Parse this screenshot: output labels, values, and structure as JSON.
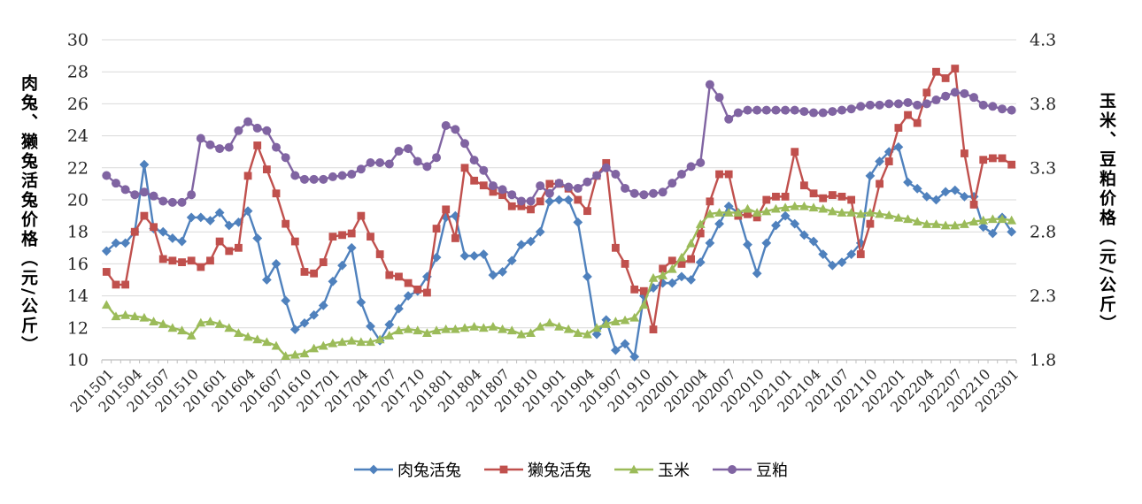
{
  "chart_data": {
    "type": "line",
    "title": "",
    "left_axis": {
      "title": "肉兔、獭兔活兔价格（元/公斤）",
      "min": 10,
      "max": 30,
      "step": 2,
      "ticks": [
        10,
        12,
        14,
        16,
        18,
        20,
        22,
        24,
        26,
        28,
        30
      ]
    },
    "right_axis": {
      "title": "玉米、豆粕价格（元/公斤）",
      "min": 1.8,
      "max": 4.3,
      "step": 0.5,
      "ticks": [
        "1.8",
        "2.3",
        "2.8",
        "3.3",
        "3.8",
        "4.3"
      ]
    },
    "grid": true,
    "legend_position": "bottom",
    "x_label_every": 3,
    "x": [
      "201501",
      "201502",
      "201503",
      "201504",
      "201505",
      "201506",
      "201507",
      "201508",
      "201509",
      "201510",
      "201511",
      "201512",
      "201601",
      "201602",
      "201603",
      "201604",
      "201605",
      "201606",
      "201607",
      "201608",
      "201609",
      "201610",
      "201611",
      "201612",
      "201701",
      "201702",
      "201703",
      "201704",
      "201705",
      "201706",
      "201707",
      "201708",
      "201709",
      "201710",
      "201711",
      "201712",
      "201801",
      "201802",
      "201803",
      "201804",
      "201805",
      "201806",
      "201807",
      "201808",
      "201809",
      "201810",
      "201811",
      "201812",
      "201901",
      "201902",
      "201903",
      "201904",
      "201905",
      "201906",
      "201907",
      "201908",
      "201909",
      "201910",
      "201911",
      "201912",
      "202001",
      "202002",
      "202003",
      "202004",
      "202005",
      "202006",
      "202007",
      "202008",
      "202009",
      "202010",
      "202011",
      "202012",
      "202101",
      "202102",
      "202103",
      "202104",
      "202105",
      "202106",
      "202107",
      "202108",
      "202109",
      "202110",
      "202111",
      "202112",
      "202201",
      "202202",
      "202203",
      "202204",
      "202205",
      "202206",
      "202207",
      "202208",
      "202209",
      "202210",
      "202211",
      "202212",
      "202301"
    ],
    "series": [
      {
        "id": "meat-rabbit",
        "name": "肉兔活兔",
        "axis": "left",
        "color": "#4F81BD",
        "marker": "diamond",
        "values": [
          16.8,
          17.3,
          17.3,
          18.0,
          22.2,
          18.2,
          18.0,
          17.6,
          17.4,
          18.9,
          18.9,
          18.7,
          19.2,
          18.4,
          18.6,
          19.3,
          17.6,
          15.0,
          16.0,
          13.7,
          11.9,
          12.3,
          12.8,
          13.4,
          14.9,
          15.9,
          17.0,
          13.6,
          12.1,
          11.2,
          12.2,
          13.2,
          14.0,
          14.3,
          15.2,
          16.4,
          18.9,
          19.0,
          16.5,
          16.5,
          16.6,
          15.3,
          15.5,
          16.2,
          17.2,
          17.4,
          18.0,
          19.9,
          20.0,
          20.0,
          18.6,
          15.2,
          11.6,
          12.5,
          10.6,
          11.0,
          10.2,
          14.0,
          14.5,
          14.8,
          14.8,
          15.2,
          15.0,
          16.1,
          17.3,
          18.5,
          19.6,
          19.2,
          17.2,
          15.4,
          17.3,
          18.4,
          19.0,
          18.5,
          17.8,
          17.4,
          16.6,
          15.9,
          16.1,
          16.6,
          17.3,
          21.5,
          22.4,
          23.0,
          23.3,
          21.1,
          20.7,
          20.2,
          20.0,
          20.5,
          20.6,
          20.2,
          20.2,
          18.3,
          17.9,
          18.9,
          18.0
        ]
      },
      {
        "id": "rex-rabbit",
        "name": "獭兔活兔",
        "axis": "left",
        "color": "#C0504D",
        "marker": "square",
        "values": [
          15.5,
          14.7,
          14.7,
          18.0,
          19.0,
          18.3,
          16.3,
          16.2,
          16.1,
          16.2,
          15.8,
          16.2,
          17.4,
          16.8,
          17.0,
          21.5,
          23.4,
          21.9,
          20.4,
          18.5,
          17.4,
          15.5,
          15.4,
          16.1,
          17.7,
          17.8,
          17.9,
          19.0,
          17.7,
          16.6,
          15.3,
          15.2,
          14.8,
          14.4,
          14.2,
          18.2,
          19.4,
          17.6,
          22.0,
          21.2,
          20.9,
          20.5,
          20.3,
          19.6,
          19.6,
          19.4,
          19.9,
          21.0,
          21.0,
          20.7,
          20.0,
          19.3,
          21.5,
          22.3,
          17.0,
          16.0,
          14.4,
          14.3,
          11.9,
          15.7,
          16.2,
          16.0,
          16.3,
          17.9,
          19.9,
          21.6,
          21.6,
          19.0,
          19.1,
          18.9,
          20.0,
          20.2,
          20.2,
          23.0,
          20.9,
          20.4,
          20.1,
          20.3,
          20.2,
          20.0,
          16.6,
          18.5,
          21.0,
          22.4,
          24.5,
          25.3,
          24.8,
          26.7,
          28.0,
          27.6,
          28.2,
          22.9,
          19.7,
          22.5,
          22.6,
          22.6,
          22.2
        ]
      },
      {
        "id": "corn",
        "name": "玉米",
        "axis": "right",
        "color": "#9BBB59",
        "marker": "triangle",
        "values": [
          2.23,
          2.14,
          2.15,
          2.14,
          2.13,
          2.1,
          2.08,
          2.05,
          2.03,
          1.99,
          2.09,
          2.1,
          2.08,
          2.05,
          2.01,
          1.98,
          1.96,
          1.94,
          1.91,
          1.83,
          1.84,
          1.85,
          1.89,
          1.91,
          1.93,
          1.94,
          1.95,
          1.94,
          1.94,
          1.96,
          1.99,
          2.03,
          2.04,
          2.03,
          2.01,
          2.03,
          2.04,
          2.04,
          2.05,
          2.06,
          2.05,
          2.06,
          2.04,
          2.03,
          2.0,
          2.01,
          2.06,
          2.09,
          2.06,
          2.04,
          2.01,
          2.0,
          2.05,
          2.08,
          2.1,
          2.11,
          2.13,
          2.23,
          2.44,
          2.46,
          2.51,
          2.6,
          2.71,
          2.86,
          2.94,
          2.95,
          2.95,
          2.95,
          2.98,
          2.95,
          2.96,
          2.98,
          2.99,
          3.0,
          3.0,
          2.99,
          2.98,
          2.96,
          2.95,
          2.95,
          2.94,
          2.95,
          2.94,
          2.93,
          2.91,
          2.9,
          2.88,
          2.86,
          2.86,
          2.85,
          2.85,
          2.86,
          2.88,
          2.89,
          2.9,
          2.9,
          2.89
        ]
      },
      {
        "id": "soybean-meal",
        "name": "豆粕",
        "axis": "right",
        "color": "#8064A2",
        "marker": "circle",
        "values": [
          3.24,
          3.18,
          3.13,
          3.09,
          3.11,
          3.08,
          3.04,
          3.03,
          3.03,
          3.09,
          3.53,
          3.48,
          3.45,
          3.46,
          3.59,
          3.66,
          3.61,
          3.59,
          3.46,
          3.38,
          3.24,
          3.21,
          3.21,
          3.21,
          3.23,
          3.24,
          3.25,
          3.29,
          3.34,
          3.34,
          3.33,
          3.43,
          3.45,
          3.35,
          3.31,
          3.38,
          3.63,
          3.6,
          3.49,
          3.36,
          3.28,
          3.16,
          3.13,
          3.09,
          3.04,
          3.04,
          3.16,
          3.1,
          3.18,
          3.15,
          3.14,
          3.19,
          3.24,
          3.3,
          3.25,
          3.14,
          3.1,
          3.09,
          3.1,
          3.11,
          3.18,
          3.25,
          3.31,
          3.34,
          3.95,
          3.85,
          3.68,
          3.73,
          3.75,
          3.75,
          3.75,
          3.75,
          3.75,
          3.75,
          3.74,
          3.73,
          3.73,
          3.74,
          3.75,
          3.76,
          3.78,
          3.79,
          3.79,
          3.8,
          3.8,
          3.81,
          3.79,
          3.8,
          3.83,
          3.86,
          3.89,
          3.88,
          3.85,
          3.79,
          3.78,
          3.76,
          3.75
        ]
      }
    ],
    "colors": {
      "grid": "#D9D9D9",
      "axis_line": "#BFBFBF",
      "text": "#262626"
    }
  }
}
